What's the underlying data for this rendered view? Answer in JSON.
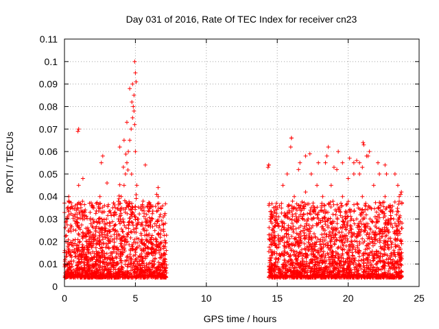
{
  "chart_data": {
    "type": "scatter",
    "title": "Day 031 of 2016, Rate Of TEC Index for receiver cn23",
    "xlabel": "GPS time / hours",
    "ylabel": "ROTI / TECUs",
    "xlim": [
      0,
      25
    ],
    "ylim": [
      0,
      0.11
    ],
    "xticks": [
      "0",
      "5",
      "10",
      "15",
      "20",
      "25"
    ],
    "yticks": [
      "0",
      "0.01",
      "0.02",
      "0.03",
      "0.04",
      "0.05",
      "0.06",
      "0.07",
      "0.08",
      "0.09",
      "0.1",
      "0.11"
    ],
    "grid": true,
    "marker": "+",
    "color": "#ff0000",
    "series": [
      {
        "name": "ROTI",
        "note": "Dense point cloud; data present 0-7.2 h and 14.4-23.8 h, mostly 0.005-0.035 TECU with peaks near 4.9 h (~0.1)",
        "x": [
          0.05,
          0.1,
          0.2,
          0.3,
          0.4,
          0.5,
          0.6,
          0.8,
          0.9,
          1.0,
          1.1,
          1.2,
          1.4,
          1.5,
          1.7,
          1.9,
          2.0,
          2.2,
          2.4,
          2.5,
          2.6,
          2.7,
          2.8,
          3.0,
          3.2,
          3.4,
          3.5,
          3.6,
          3.8,
          4.0,
          4.1,
          4.2,
          4.3,
          4.4,
          4.5,
          4.6,
          4.7,
          4.8,
          4.85,
          4.9,
          4.95,
          5.0,
          5.1,
          5.2,
          5.4,
          5.6,
          5.8,
          6.0,
          6.2,
          6.4,
          6.6,
          6.8,
          7.0,
          7.1,
          0.25,
          0.3,
          0.95,
          1.0,
          1.3,
          2.6,
          2.7,
          3.0,
          3.9,
          4.2,
          4.4,
          4.6,
          4.75,
          4.8,
          4.9,
          4.95,
          5.0,
          5.05,
          5.7,
          6.5,
          6.6,
          14.4,
          14.5,
          14.6,
          14.7,
          14.8,
          15.0,
          15.2,
          15.4,
          15.5,
          15.7,
          15.9,
          16.0,
          16.2,
          16.4,
          16.6,
          16.8,
          17.0,
          17.2,
          17.4,
          17.6,
          17.8,
          18.0,
          18.2,
          18.4,
          18.6,
          18.8,
          19.0,
          19.2,
          19.4,
          19.6,
          19.8,
          20.0,
          20.2,
          20.4,
          20.6,
          20.8,
          21.0,
          21.2,
          21.4,
          21.6,
          21.8,
          22.0,
          22.2,
          22.4,
          22.6,
          22.8,
          23.0,
          23.2,
          23.4,
          23.6,
          23.75,
          14.35,
          14.4,
          15.1,
          15.95,
          16.0,
          16.5,
          17.0,
          17.3,
          17.9,
          18.5,
          18.6,
          19.0,
          19.3,
          19.6,
          20.1,
          20.4,
          20.6,
          20.8,
          21.0,
          21.05,
          21.1,
          21.3,
          21.5,
          22.1,
          22.6,
          22.7,
          23.3,
          23.5,
          23.7,
          23.75
        ],
        "y": [
          0.012,
          0.02,
          0.03,
          0.038,
          0.015,
          0.01,
          0.018,
          0.025,
          0.035,
          0.045,
          0.02,
          0.012,
          0.03,
          0.022,
          0.015,
          0.02,
          0.018,
          0.025,
          0.03,
          0.04,
          0.015,
          0.022,
          0.012,
          0.028,
          0.02,
          0.035,
          0.018,
          0.025,
          0.03,
          0.04,
          0.022,
          0.045,
          0.05,
          0.055,
          0.06,
          0.065,
          0.07,
          0.075,
          0.08,
          0.085,
          0.072,
          0.06,
          0.045,
          0.03,
          0.02,
          0.035,
          0.025,
          0.02,
          0.03,
          0.015,
          0.04,
          0.025,
          0.018,
          0.012,
          0.034,
          0.04,
          0.069,
          0.07,
          0.048,
          0.055,
          0.058,
          0.046,
          0.062,
          0.065,
          0.073,
          0.088,
          0.082,
          0.09,
          0.078,
          0.1,
          0.095,
          0.091,
          0.054,
          0.041,
          0.044,
          0.054,
          0.03,
          0.015,
          0.025,
          0.01,
          0.035,
          0.02,
          0.045,
          0.028,
          0.05,
          0.03,
          0.066,
          0.04,
          0.02,
          0.055,
          0.03,
          0.042,
          0.025,
          0.05,
          0.035,
          0.045,
          0.02,
          0.04,
          0.055,
          0.03,
          0.045,
          0.025,
          0.052,
          0.035,
          0.04,
          0.03,
          0.048,
          0.02,
          0.055,
          0.03,
          0.05,
          0.04,
          0.025,
          0.058,
          0.035,
          0.045,
          0.03,
          0.05,
          0.025,
          0.04,
          0.02,
          0.035,
          0.03,
          0.025,
          0.04,
          0.02,
          0.053,
          0.054,
          0.031,
          0.062,
          0.066,
          0.052,
          0.058,
          0.059,
          0.055,
          0.058,
          0.062,
          0.053,
          0.06,
          0.055,
          0.057,
          0.05,
          0.056,
          0.055,
          0.053,
          0.064,
          0.063,
          0.058,
          0.06,
          0.055,
          0.054,
          0.05,
          0.05,
          0.045,
          0.041,
          0.042
        ]
      }
    ]
  }
}
